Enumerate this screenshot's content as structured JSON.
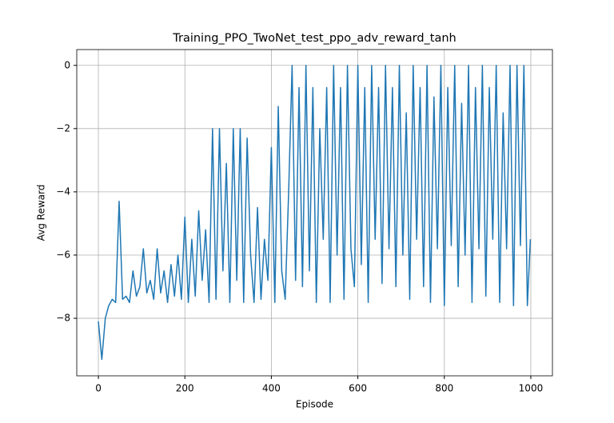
{
  "chart_data": {
    "type": "line",
    "title": "Training_PPO_TwoNet_test_ppo_adv_reward_tanh",
    "xlabel": "Episode",
    "ylabel": "Avg Reward",
    "x": [
      0,
      8,
      16,
      24,
      32,
      40,
      48,
      56,
      64,
      72,
      80,
      88,
      96,
      104,
      112,
      120,
      128,
      136,
      144,
      152,
      160,
      168,
      176,
      184,
      192,
      200,
      208,
      216,
      224,
      232,
      240,
      248,
      256,
      264,
      272,
      280,
      288,
      296,
      304,
      312,
      320,
      328,
      336,
      344,
      352,
      360,
      368,
      376,
      384,
      392,
      400,
      408,
      416,
      424,
      432,
      440,
      448,
      456,
      464,
      472,
      480,
      488,
      496,
      504,
      512,
      520,
      528,
      536,
      544,
      552,
      560,
      568,
      576,
      584,
      592,
      600,
      608,
      616,
      624,
      632,
      640,
      648,
      656,
      664,
      672,
      680,
      688,
      696,
      704,
      712,
      720,
      728,
      736,
      744,
      752,
      760,
      768,
      776,
      784,
      792,
      800,
      808,
      816,
      824,
      832,
      840,
      848,
      856,
      864,
      872,
      880,
      888,
      896,
      904,
      912,
      920,
      928,
      936,
      944,
      952,
      960,
      968,
      976,
      984,
      992,
      999
    ],
    "values": [
      -8.1,
      -9.3,
      -8.0,
      -7.6,
      -7.4,
      -7.5,
      -4.3,
      -7.4,
      -7.3,
      -7.5,
      -6.5,
      -7.3,
      -7.0,
      -5.8,
      -7.2,
      -6.8,
      -7.4,
      -5.8,
      -7.2,
      -6.5,
      -7.5,
      -6.3,
      -7.3,
      -6.0,
      -7.4,
      -4.8,
      -7.5,
      -5.5,
      -7.3,
      -4.6,
      -6.8,
      -5.2,
      -7.5,
      -2.0,
      -7.4,
      -2.0,
      -6.5,
      -3.1,
      -7.5,
      -2.0,
      -6.8,
      -2.0,
      -7.5,
      -2.3,
      -6.0,
      -7.5,
      -4.5,
      -7.4,
      -5.5,
      -6.8,
      -2.6,
      -7.5,
      -1.3,
      -6.5,
      -7.4,
      -4.0,
      0,
      -6.8,
      -0.7,
      -7.0,
      0,
      -6.5,
      -0.7,
      -7.5,
      -2.0,
      -5.5,
      -0.7,
      -7.5,
      0,
      -6.0,
      -0.7,
      -7.4,
      0,
      -5.8,
      -7.0,
      0,
      -6.3,
      -0.7,
      -7.5,
      0,
      -5.5,
      -0.7,
      -6.9,
      0,
      -5.8,
      -0.7,
      -7.0,
      0,
      -6.0,
      -1.5,
      -7.4,
      0,
      -5.5,
      -0.7,
      -7.0,
      0,
      -7.5,
      -1.0,
      -5.8,
      0,
      -7.6,
      -0.7,
      -5.7,
      0,
      -7.0,
      -1.2,
      -6.0,
      0,
      -7.5,
      -0.7,
      -5.8,
      0,
      -7.3,
      -0.7,
      -5.5,
      0,
      -7.5,
      -1.5,
      -5.8,
      0,
      -7.6,
      0,
      -5.7,
      0,
      -7.6,
      -5.5
    ],
    "color": "#1f77b4",
    "xlim": [
      -50,
      1050
    ],
    "xticks": [
      0,
      200,
      400,
      600,
      800,
      1000
    ],
    "ylim": [
      -9.82,
      0.5
    ],
    "yticks": [
      {
        "value": -8,
        "label": "−8"
      },
      {
        "value": -6,
        "label": "−6"
      },
      {
        "value": -4,
        "label": "−4"
      },
      {
        "value": -2,
        "label": "−2"
      },
      0
    ],
    "grid": true
  }
}
